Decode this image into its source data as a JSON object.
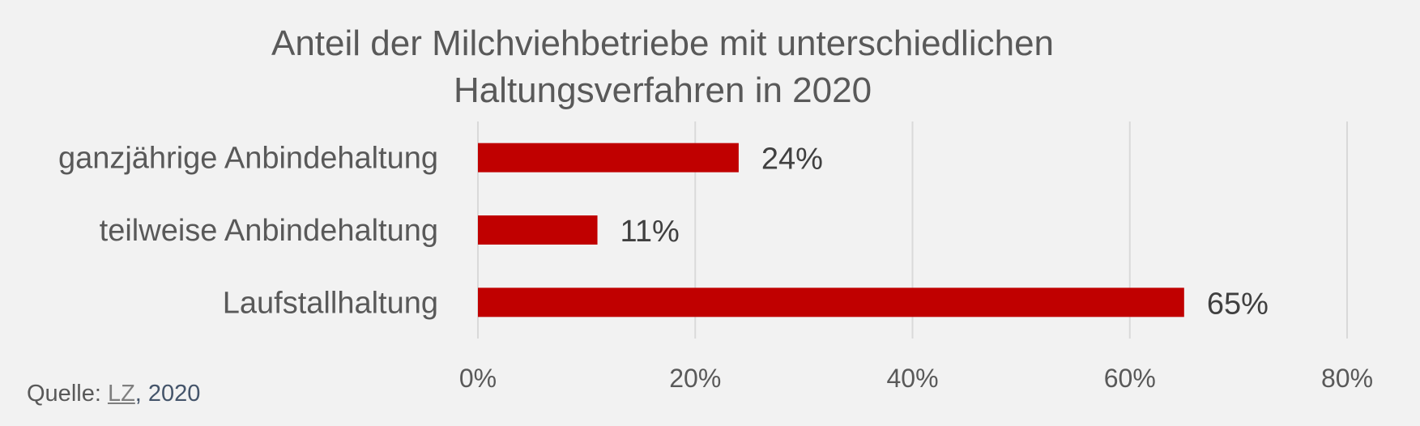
{
  "chart_data": {
    "type": "bar",
    "orientation": "horizontal",
    "title": "Anteil der Milchviehbetriebe mit unterschiedlichen Haltungsverfahren in 2020",
    "title_lines": [
      "Anteil der Milchviehbetriebe mit unterschiedlichen",
      "Haltungsverfahren in 2020"
    ],
    "categories": [
      "ganzjährige Anbindehaltung",
      "teilweise Anbindehaltung",
      "Laufstallhaltung"
    ],
    "values": [
      24,
      11,
      65
    ],
    "data_labels": [
      "24%",
      "11%",
      "65%"
    ],
    "x_ticks": [
      0,
      20,
      40,
      60,
      80
    ],
    "x_tick_labels": [
      "0%",
      "20%",
      "40%",
      "60%",
      "80%"
    ],
    "xlim": [
      0,
      80
    ],
    "xlabel": "",
    "ylabel": "",
    "grid": true,
    "legend": "none",
    "colors": {
      "bar": "#c00000",
      "text": "#595959",
      "grid": "#d9d9d9",
      "background": "#f2f2f2"
    }
  },
  "source": {
    "prefix": "Quelle: ",
    "link_text": "LZ",
    "suffix": ", 2020"
  }
}
